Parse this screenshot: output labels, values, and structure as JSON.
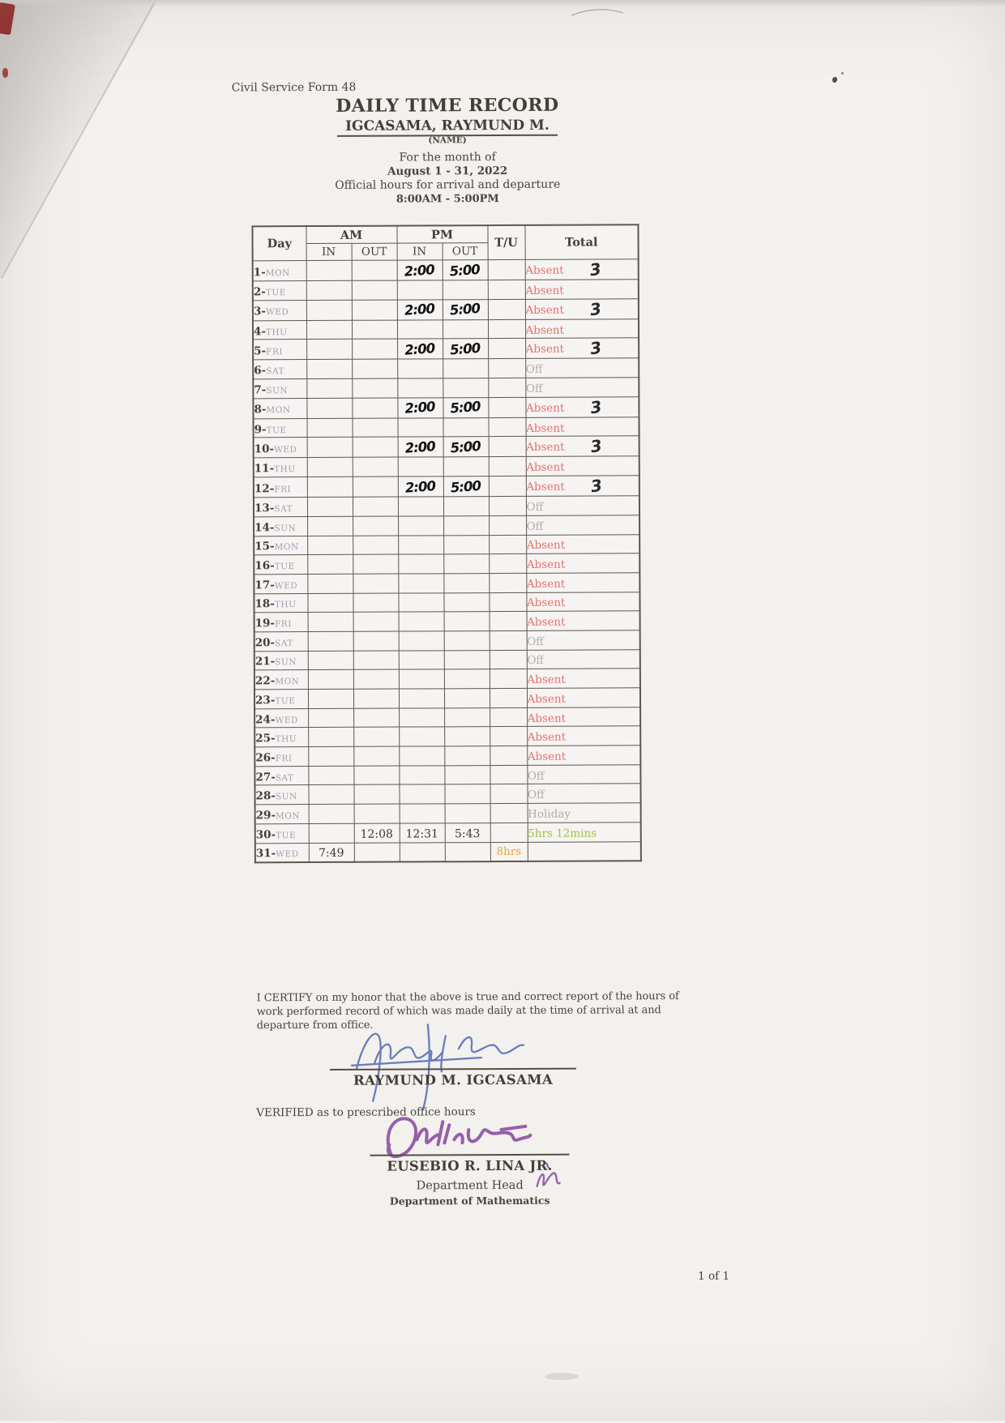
{
  "header": {
    "form_label": "Civil Service Form 48",
    "title": "DAILY TIME RECORD",
    "employee_name": "IGCASAMA, RAYMUND M.",
    "name_caption": "(NAME)",
    "month_label": "For the month of",
    "month_value": "August 1 - 31, 2022",
    "hours_label": "Official hours for arrival and departure",
    "hours_value": "8:00AM - 5:00PM"
  },
  "table": {
    "headers": {
      "day": "Day",
      "am": "AM",
      "pm": "PM",
      "in": "IN",
      "out": "OUT",
      "tu": "T/U",
      "total": "Total"
    },
    "rows": [
      {
        "num": "1",
        "name": "MON",
        "am_in": "",
        "am_out": "",
        "pm_in": "2:00",
        "pm_out": "5:00",
        "hw": true,
        "tu": "",
        "total": "Absent",
        "style": "absent",
        "note": "3"
      },
      {
        "num": "2",
        "name": "TUE",
        "am_in": "",
        "am_out": "",
        "pm_in": "",
        "pm_out": "",
        "hw": false,
        "tu": "",
        "total": "Absent",
        "style": "absent",
        "note": ""
      },
      {
        "num": "3",
        "name": "WED",
        "am_in": "",
        "am_out": "",
        "pm_in": "2:00",
        "pm_out": "5:00",
        "hw": true,
        "tu": "",
        "total": "Absent",
        "style": "absent",
        "note": "3"
      },
      {
        "num": "4",
        "name": "THU",
        "am_in": "",
        "am_out": "",
        "pm_in": "",
        "pm_out": "",
        "hw": false,
        "tu": "",
        "total": "Absent",
        "style": "absent",
        "note": ""
      },
      {
        "num": "5",
        "name": "FRI",
        "am_in": "",
        "am_out": "",
        "pm_in": "2:00",
        "pm_out": "5:00",
        "hw": true,
        "tu": "",
        "total": "Absent",
        "style": "absent",
        "note": "3"
      },
      {
        "num": "6",
        "name": "SAT",
        "am_in": "",
        "am_out": "",
        "pm_in": "",
        "pm_out": "",
        "hw": false,
        "tu": "",
        "total": "Off",
        "style": "off",
        "note": ""
      },
      {
        "num": "7",
        "name": "SUN",
        "am_in": "",
        "am_out": "",
        "pm_in": "",
        "pm_out": "",
        "hw": false,
        "tu": "",
        "total": "Off",
        "style": "off",
        "note": ""
      },
      {
        "num": "8",
        "name": "MON",
        "am_in": "",
        "am_out": "",
        "pm_in": "2:00",
        "pm_out": "5:00",
        "hw": true,
        "tu": "",
        "total": "Absent",
        "style": "absent",
        "note": "3"
      },
      {
        "num": "9",
        "name": "TUE",
        "am_in": "",
        "am_out": "",
        "pm_in": "",
        "pm_out": "",
        "hw": false,
        "tu": "",
        "total": "Absent",
        "style": "absent",
        "note": ""
      },
      {
        "num": "10",
        "name": "WED",
        "am_in": "",
        "am_out": "",
        "pm_in": "2:00",
        "pm_out": "5:00",
        "hw": true,
        "tu": "",
        "total": "Absent",
        "style": "absent",
        "note": "3"
      },
      {
        "num": "11",
        "name": "THU",
        "am_in": "",
        "am_out": "",
        "pm_in": "",
        "pm_out": "",
        "hw": false,
        "tu": "",
        "total": "Absent",
        "style": "absent",
        "note": ""
      },
      {
        "num": "12",
        "name": "FRI",
        "am_in": "",
        "am_out": "",
        "pm_in": "2:00",
        "pm_out": "5:00",
        "hw": true,
        "tu": "",
        "total": "Absent",
        "style": "absent",
        "note": "3"
      },
      {
        "num": "13",
        "name": "SAT",
        "am_in": "",
        "am_out": "",
        "pm_in": "",
        "pm_out": "",
        "hw": false,
        "tu": "",
        "total": "Off",
        "style": "off",
        "note": ""
      },
      {
        "num": "14",
        "name": "SUN",
        "am_in": "",
        "am_out": "",
        "pm_in": "",
        "pm_out": "",
        "hw": false,
        "tu": "",
        "total": "Off",
        "style": "off",
        "note": ""
      },
      {
        "num": "15",
        "name": "MON",
        "am_in": "",
        "am_out": "",
        "pm_in": "",
        "pm_out": "",
        "hw": false,
        "tu": "",
        "total": "Absent",
        "style": "absent",
        "note": ""
      },
      {
        "num": "16",
        "name": "TUE",
        "am_in": "",
        "am_out": "",
        "pm_in": "",
        "pm_out": "",
        "hw": false,
        "tu": "",
        "total": "Absent",
        "style": "absent",
        "note": ""
      },
      {
        "num": "17",
        "name": "WED",
        "am_in": "",
        "am_out": "",
        "pm_in": "",
        "pm_out": "",
        "hw": false,
        "tu": "",
        "total": "Absent",
        "style": "absent",
        "note": ""
      },
      {
        "num": "18",
        "name": "THU",
        "am_in": "",
        "am_out": "",
        "pm_in": "",
        "pm_out": "",
        "hw": false,
        "tu": "",
        "total": "Absent",
        "style": "absent",
        "note": ""
      },
      {
        "num": "19",
        "name": "FRI",
        "am_in": "",
        "am_out": "",
        "pm_in": "",
        "pm_out": "",
        "hw": false,
        "tu": "",
        "total": "Absent",
        "style": "absent",
        "note": ""
      },
      {
        "num": "20",
        "name": "SAT",
        "am_in": "",
        "am_out": "",
        "pm_in": "",
        "pm_out": "",
        "hw": false,
        "tu": "",
        "total": "Off",
        "style": "off",
        "note": ""
      },
      {
        "num": "21",
        "name": "SUN",
        "am_in": "",
        "am_out": "",
        "pm_in": "",
        "pm_out": "",
        "hw": false,
        "tu": "",
        "total": "Off",
        "style": "off",
        "note": ""
      },
      {
        "num": "22",
        "name": "MON",
        "am_in": "",
        "am_out": "",
        "pm_in": "",
        "pm_out": "",
        "hw": false,
        "tu": "",
        "total": "Absent",
        "style": "absent",
        "note": ""
      },
      {
        "num": "23",
        "name": "TUE",
        "am_in": "",
        "am_out": "",
        "pm_in": "",
        "pm_out": "",
        "hw": false,
        "tu": "",
        "total": "Absent",
        "style": "absent",
        "note": ""
      },
      {
        "num": "24",
        "name": "WED",
        "am_in": "",
        "am_out": "",
        "pm_in": "",
        "pm_out": "",
        "hw": false,
        "tu": "",
        "total": "Absent",
        "style": "absent",
        "note": ""
      },
      {
        "num": "25",
        "name": "THU",
        "am_in": "",
        "am_out": "",
        "pm_in": "",
        "pm_out": "",
        "hw": false,
        "tu": "",
        "total": "Absent",
        "style": "absent",
        "note": ""
      },
      {
        "num": "26",
        "name": "FRI",
        "am_in": "",
        "am_out": "",
        "pm_in": "",
        "pm_out": "",
        "hw": false,
        "tu": "",
        "total": "Absent",
        "style": "absent",
        "note": ""
      },
      {
        "num": "27",
        "name": "SAT",
        "am_in": "",
        "am_out": "",
        "pm_in": "",
        "pm_out": "",
        "hw": false,
        "tu": "",
        "total": "Off",
        "style": "off",
        "note": ""
      },
      {
        "num": "28",
        "name": "SUN",
        "am_in": "",
        "am_out": "",
        "pm_in": "",
        "pm_out": "",
        "hw": false,
        "tu": "",
        "total": "Off",
        "style": "off",
        "note": ""
      },
      {
        "num": "29",
        "name": "MON",
        "am_in": "",
        "am_out": "",
        "pm_in": "",
        "pm_out": "",
        "hw": false,
        "tu": "",
        "total": "Holiday",
        "style": "holiday",
        "note": ""
      },
      {
        "num": "30",
        "name": "TUE",
        "am_in": "",
        "am_out": "12:08",
        "pm_in": "12:31",
        "pm_out": "5:43",
        "hw": false,
        "tu": "",
        "total": "5hrs 12mins",
        "style": "worked",
        "note": ""
      },
      {
        "num": "31",
        "name": "WED",
        "am_in": "7:49",
        "am_out": "",
        "pm_in": "",
        "pm_out": "",
        "hw": false,
        "tu": "8hrs",
        "total": "",
        "style": "",
        "note": ""
      }
    ]
  },
  "footer": {
    "certification": "I CERTIFY on my honor that the above is true and correct report of the hours of work performed record of which was made daily at the time of arrival at and departure from office.",
    "employee_name": "RAYMUND M. IGCASAMA",
    "verified_label": "VERIFIED as to prescribed office hours",
    "verifier_name": "EUSEBIO R. LINA JR.",
    "verifier_title": "Department Head",
    "verifier_department": "Department of Mathematics",
    "page_number": "1 of 1"
  },
  "icons": {
    "employee_signature": "handwritten-signature-blue",
    "verifier_signature": "handwritten-signature-purple",
    "verifier_initial_mark": "handwritten-initials-purple"
  },
  "colors": {
    "absent": "#e4726b",
    "off": "#b3ada9",
    "holiday": "#b4a9a5",
    "worked": "#9dc13b",
    "overtime": "#e9a53f",
    "ink_blue": "#5b6fb5",
    "ink_purple": "#8b4aa0"
  }
}
